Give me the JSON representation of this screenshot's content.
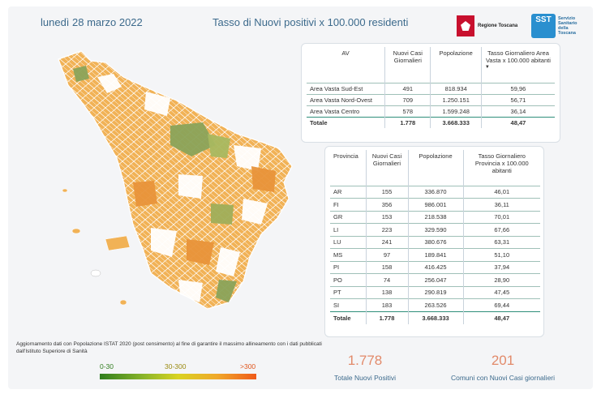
{
  "header": {
    "date": "lunedì 28 marzo 2022",
    "title": "Tasso di Nuovi positivi x 100.000 residenti"
  },
  "logos": {
    "regione": "Regione Toscana",
    "sst_short": "SST",
    "sst_long": [
      "Servizio",
      "Sanitario",
      "della",
      "Toscana"
    ]
  },
  "av_table": {
    "headers": [
      "AV",
      "Nuovi Casi Giornalieri",
      "Popolazione",
      "Tasso Giornaliero Area Vasta x 100.000 abitanti"
    ],
    "rows": [
      [
        "Area Vasta Sud-Est",
        "491",
        "818.934",
        "59,96"
      ],
      [
        "Area Vasta Nord-Ovest",
        "709",
        "1.250.151",
        "56,71"
      ],
      [
        "Area Vasta Centro",
        "578",
        "1.599.248",
        "36,14"
      ]
    ],
    "total": [
      "Totale",
      "1.778",
      "3.668.333",
      "48,47"
    ]
  },
  "prov_table": {
    "headers": [
      "Provincia",
      "Nuovi Casi Giornalieri",
      "Popolazione",
      "Tasso Giornaliero Provincia x 100.000 abitanti"
    ],
    "rows": [
      [
        "AR",
        "155",
        "336.870",
        "46,01"
      ],
      [
        "FI",
        "356",
        "986.001",
        "36,11"
      ],
      [
        "GR",
        "153",
        "218.538",
        "70,01"
      ],
      [
        "LI",
        "223",
        "329.590",
        "67,66"
      ],
      [
        "LU",
        "241",
        "380.676",
        "63,31"
      ],
      [
        "MS",
        "97",
        "189.841",
        "51,10"
      ],
      [
        "PI",
        "158",
        "416.425",
        "37,94"
      ],
      [
        "PO",
        "74",
        "256.047",
        "28,90"
      ],
      [
        "PT",
        "138",
        "290.819",
        "47,45"
      ],
      [
        "SI",
        "183",
        "263.526",
        "69,44"
      ]
    ],
    "total": [
      "Totale",
      "1.778",
      "3.668.333",
      "48,47"
    ]
  },
  "note": "Aggiornamento dati con Popolazione ISTAT 2020 (post censimento) al fine di garantire il massimo allineamento con i dati pubblicati dall'Istituto Superiore di Sanità",
  "legend": {
    "low": "0-30",
    "mid": "30-300",
    "high": ">300"
  },
  "kpis": [
    {
      "value": "1.778",
      "label": "Totale Nuovi Positivi"
    },
    {
      "value": "201",
      "label": "Comuni con Nuovi Casi giornalieri"
    }
  ],
  "colors": {
    "accent": "#3c6a8c",
    "kpi": "#e28a6a",
    "orange": "#f0b050",
    "dark_orange": "#e8933a",
    "green": "#8aa35a",
    "white": "#ffffff"
  }
}
